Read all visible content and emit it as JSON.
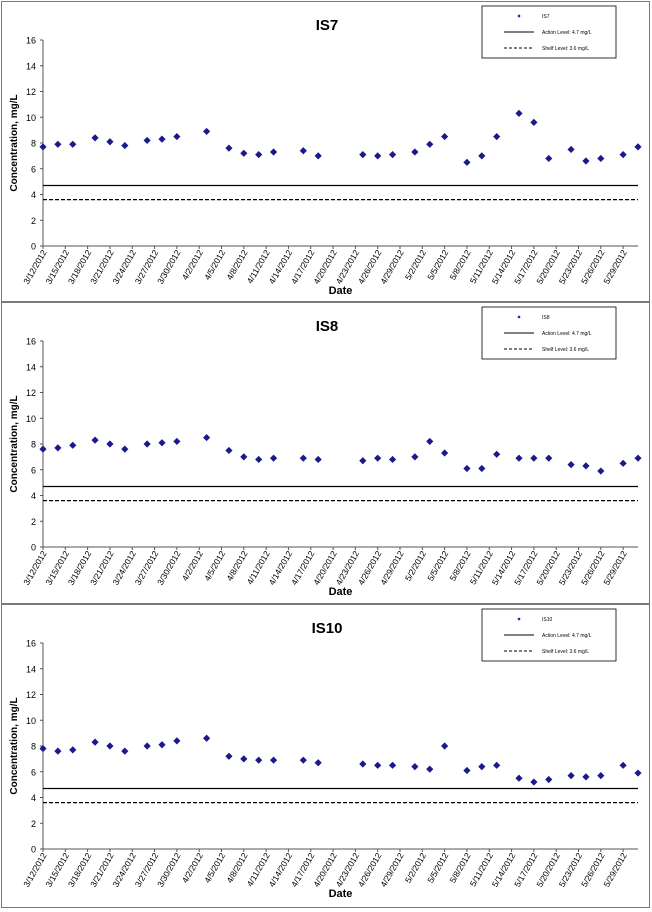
{
  "colors": {
    "marker": "#1a1a8c",
    "axis": "#555555",
    "line": "#000000"
  },
  "shared": {
    "xlabel": "Date",
    "ylabel": "Concentration, mg/L",
    "tick_labels": [
      "3/12/2012",
      "3/15/2012",
      "3/18/2012",
      "3/21/2012",
      "3/24/2012",
      "3/27/2012",
      "3/30/2012",
      "4/2/2012",
      "4/5/2012",
      "4/8/2012",
      "4/11/2012",
      "4/14/2012",
      "4/17/2012",
      "4/20/2012",
      "4/23/2012",
      "4/26/2012",
      "4/29/2012",
      "5/2/2012",
      "5/5/2012",
      "5/8/2012",
      "5/11/2012",
      "5/14/2012",
      "5/17/2012",
      "5/20/2012",
      "5/23/2012",
      "5/26/2012",
      "5/29/2012"
    ],
    "y_ticks": [
      0,
      2,
      4,
      6,
      8,
      10,
      12,
      14,
      16
    ]
  },
  "chart_data": [
    {
      "type": "scatter",
      "title": "IS7",
      "xlabel": "Date",
      "ylabel": "Concentration, mg/L",
      "ylim": [
        0,
        16
      ],
      "xlim": [
        "3/12/2012",
        "5/31/2012"
      ],
      "grid": false,
      "legend_position": "top-right",
      "series": [
        {
          "name": "IS7",
          "kind": "points",
          "x": [
            "3/12/2012",
            "3/14/2012",
            "3/16/2012",
            "3/19/2012",
            "3/21/2012",
            "3/23/2012",
            "3/26/2012",
            "3/28/2012",
            "3/30/2012",
            "4/3/2012",
            "4/6/2012",
            "4/8/2012",
            "4/10/2012",
            "4/12/2012",
            "4/16/2012",
            "4/18/2012",
            "4/24/2012",
            "4/26/2012",
            "4/28/2012",
            "5/1/2012",
            "5/3/2012",
            "5/5/2012",
            "5/8/2012",
            "5/10/2012",
            "5/12/2012",
            "5/15/2012",
            "5/17/2012",
            "5/19/2012",
            "5/22/2012",
            "5/24/2012",
            "5/26/2012",
            "5/29/2012",
            "5/31/2012"
          ],
          "values": [
            7.7,
            7.9,
            7.9,
            8.4,
            8.1,
            7.8,
            8.2,
            8.3,
            8.5,
            8.9,
            7.6,
            7.2,
            7.1,
            7.3,
            7.4,
            7.0,
            7.1,
            7.0,
            7.1,
            7.3,
            7.9,
            8.5,
            6.5,
            7.0,
            8.5,
            10.3,
            9.6,
            6.8,
            7.5,
            6.6,
            6.8,
            7.1,
            7.7
          ]
        },
        {
          "name": "Action Level: 4.7 mg/L",
          "kind": "hline",
          "value": 4.7
        },
        {
          "name": "Shelf Level: 3.6 mg/L",
          "kind": "hline",
          "value": 3.6,
          "dashed": true
        }
      ]
    },
    {
      "type": "scatter",
      "title": "IS8",
      "xlabel": "Date",
      "ylabel": "Concentration, mg/L",
      "ylim": [
        0,
        16
      ],
      "xlim": [
        "3/12/2012",
        "5/31/2012"
      ],
      "grid": false,
      "legend_position": "top-right",
      "series": [
        {
          "name": "IS8",
          "kind": "points",
          "x": [
            "3/12/2012",
            "3/14/2012",
            "3/16/2012",
            "3/19/2012",
            "3/21/2012",
            "3/23/2012",
            "3/26/2012",
            "3/28/2012",
            "3/30/2012",
            "4/3/2012",
            "4/6/2012",
            "4/8/2012",
            "4/10/2012",
            "4/12/2012",
            "4/16/2012",
            "4/18/2012",
            "4/24/2012",
            "4/26/2012",
            "4/28/2012",
            "5/1/2012",
            "5/3/2012",
            "5/5/2012",
            "5/8/2012",
            "5/10/2012",
            "5/12/2012",
            "5/15/2012",
            "5/17/2012",
            "5/19/2012",
            "5/22/2012",
            "5/24/2012",
            "5/26/2012",
            "5/29/2012",
            "5/31/2012"
          ],
          "values": [
            7.6,
            7.7,
            7.9,
            8.3,
            8.0,
            7.6,
            8.0,
            8.1,
            8.2,
            8.5,
            7.5,
            7.0,
            6.8,
            6.9,
            6.9,
            6.8,
            6.7,
            6.9,
            6.8,
            7.0,
            8.2,
            7.3,
            6.1,
            6.1,
            7.2,
            6.9,
            6.9,
            6.9,
            6.4,
            6.3,
            5.9,
            6.5,
            6.9
          ]
        },
        {
          "name": "Action Level: 4.7 mg/L",
          "kind": "hline",
          "value": 4.7
        },
        {
          "name": "Shelf Level: 3.6 mg/L",
          "kind": "hline",
          "value": 3.6,
          "dashed": true
        }
      ]
    },
    {
      "type": "scatter",
      "title": "IS10",
      "xlabel": "Date",
      "ylabel": "Concentration, mg/L",
      "ylim": [
        0,
        16
      ],
      "xlim": [
        "3/12/2012",
        "5/31/2012"
      ],
      "grid": false,
      "legend_position": "top-right",
      "series": [
        {
          "name": "IS10",
          "kind": "points",
          "x": [
            "3/12/2012",
            "3/14/2012",
            "3/16/2012",
            "3/19/2012",
            "3/21/2012",
            "3/23/2012",
            "3/26/2012",
            "3/28/2012",
            "3/30/2012",
            "4/3/2012",
            "4/6/2012",
            "4/8/2012",
            "4/10/2012",
            "4/12/2012",
            "4/16/2012",
            "4/18/2012",
            "4/24/2012",
            "4/26/2012",
            "4/28/2012",
            "5/1/2012",
            "5/3/2012",
            "5/5/2012",
            "5/8/2012",
            "5/10/2012",
            "5/12/2012",
            "5/15/2012",
            "5/17/2012",
            "5/19/2012",
            "5/22/2012",
            "5/24/2012",
            "5/26/2012",
            "5/29/2012",
            "5/31/2012"
          ],
          "values": [
            7.8,
            7.6,
            7.7,
            8.3,
            8.0,
            7.6,
            8.0,
            8.1,
            8.4,
            8.6,
            7.2,
            7.0,
            6.9,
            6.9,
            6.9,
            6.7,
            6.6,
            6.5,
            6.5,
            6.4,
            6.2,
            8.0,
            6.1,
            6.4,
            6.5,
            5.5,
            5.2,
            5.4,
            5.7,
            5.6,
            5.7,
            6.5,
            5.9
          ]
        },
        {
          "name": "Action Level: 4.7 mg/L",
          "kind": "hline",
          "value": 4.7
        },
        {
          "name": "Shelf Level: 3.6 mg/L",
          "kind": "hline",
          "value": 3.6,
          "dashed": true
        }
      ]
    }
  ]
}
